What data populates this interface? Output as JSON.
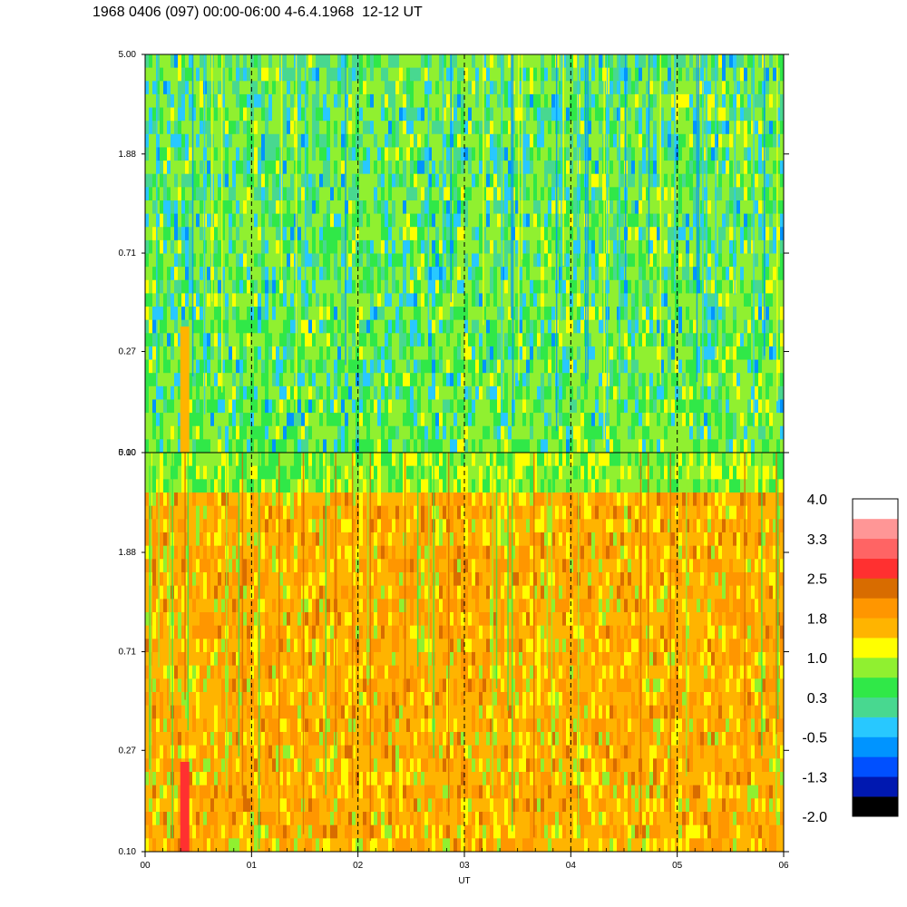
{
  "title": "1968 0406 (097) 00:00-06:00 4-6.4.1968  12-12 UT",
  "chart_data": {
    "type": "heatmap",
    "panels": [
      {
        "id": "upper",
        "y_ticks": [
          "5.00",
          "1.88",
          "0.71",
          "0.27",
          "0.10"
        ],
        "dominant": "green"
      },
      {
        "id": "lower",
        "y_ticks": [
          "5.00",
          "1.88",
          "0.71",
          "0.27",
          "0.10"
        ],
        "dominant": "orange"
      }
    ],
    "x_ticks": [
      "00",
      "01",
      "02",
      "03",
      "04",
      "05",
      "06"
    ],
    "x_label": "UT",
    "x_range": [
      0,
      6
    ],
    "y_range": [
      0.1,
      5.0
    ],
    "y_scale": "log",
    "vertical_dashed_lines_at": [
      1,
      2,
      3,
      4,
      5
    ],
    "colorbar": {
      "tick_labels": [
        "4.0",
        "3.3",
        "2.5",
        "1.8",
        "1.0",
        "0.3",
        "-0.5",
        "-1.3",
        "-2.0"
      ],
      "range": [
        -2.0,
        4.0
      ],
      "colors": [
        "#000000",
        "#0018b0",
        "#0050ff",
        "#0094ff",
        "#28c8ff",
        "#48d890",
        "#30e848",
        "#90f030",
        "#ffff00",
        "#ffb400",
        "#ff9600",
        "#d86c00",
        "#ff3030",
        "#ff6464",
        "#ff9696",
        "#ffffff"
      ]
    }
  },
  "colors": {
    "upper_palette": [
      "#90f030",
      "#30e848",
      "#48d890",
      "#28c8ff",
      "#ffff00",
      "#0094ff",
      "#ff9600"
    ],
    "lower_palette": [
      "#ffb400",
      "#ff9600",
      "#ffff00",
      "#90f030",
      "#d86c00",
      "#30e848",
      "#ff3030"
    ]
  }
}
